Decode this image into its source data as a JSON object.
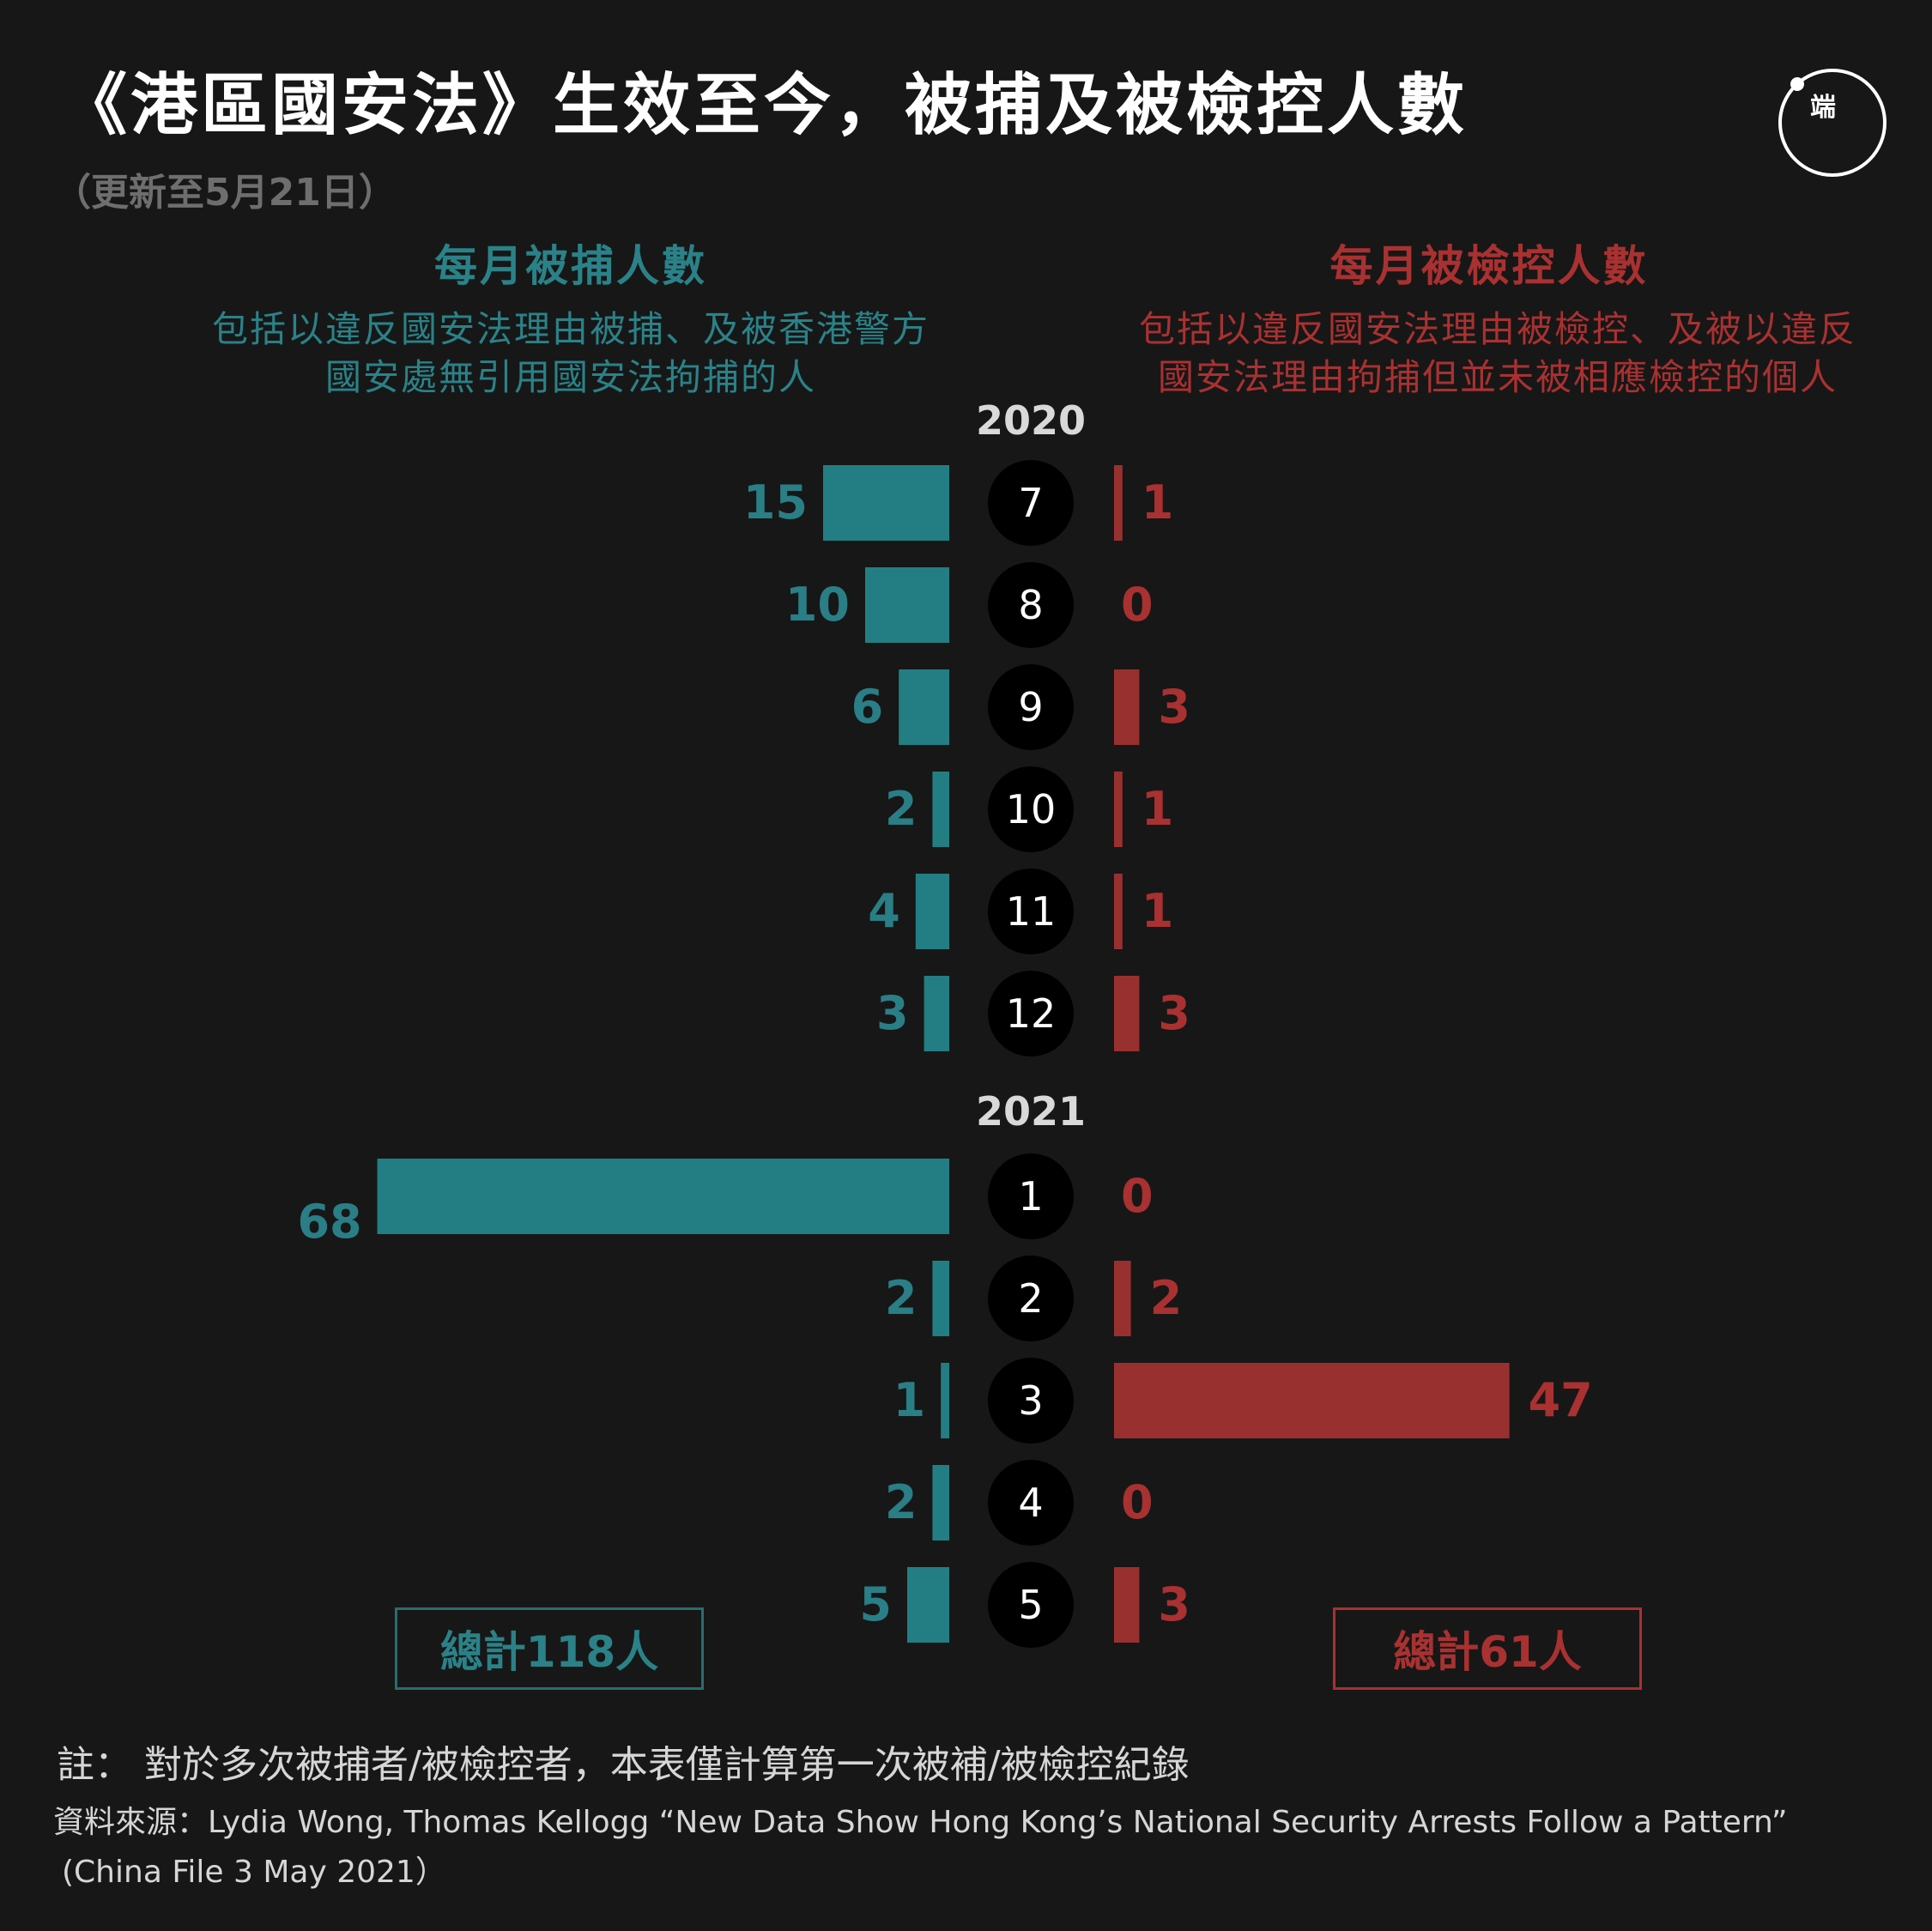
{
  "header": {
    "title": "《港區國安法》生效至今，被捕及被檢控人數",
    "subtitle": "（更新至5月21日）",
    "logo_text": "端"
  },
  "left_panel": {
    "heading": "每月被捕人數",
    "description_line1": "包括以違反國安法理由被捕、及被香港警方",
    "description_line2": "國安處無引用國安法拘捕的人",
    "total": "總計118人"
  },
  "right_panel": {
    "heading": "每月被檢控人數",
    "description_line1": "包括以違反國安法理由被檢控、及被以違反",
    "description_line2": "國安法理由拘捕但並未被相應檢控的個人",
    "total": "總計61人"
  },
  "colors": {
    "arrests": "#237e83",
    "charged": "#993030",
    "month_circle": "#000000",
    "background": "#171717"
  },
  "chart_data": {
    "type": "bar",
    "orientation": "horizontal-diverging",
    "groups": [
      {
        "year": "2020",
        "months": [
          "7",
          "8",
          "9",
          "10",
          "11",
          "12"
        ]
      },
      {
        "year": "2021",
        "months": [
          "1",
          "2",
          "3",
          "4",
          "5"
        ]
      }
    ],
    "series": [
      {
        "name": "每月被捕人數",
        "side": "left",
        "values": [
          15,
          10,
          6,
          2,
          4,
          3,
          68,
          2,
          1,
          2,
          5
        ]
      },
      {
        "name": "每月被檢控人數",
        "side": "right",
        "values": [
          1,
          0,
          3,
          1,
          1,
          3,
          0,
          2,
          47,
          0,
          3
        ]
      }
    ]
  },
  "footer": {
    "note": "註： 對於多次被捕者/被檢控者，本表僅計算第一次被補/被檢控紀錄",
    "source_line1": "資料來源：Lydia Wong, Thomas Kellogg “New Data Show Hong Kong’s National Security Arrests Follow a Pattern”",
    "source_line2": "(China File 3 May 2021）"
  }
}
